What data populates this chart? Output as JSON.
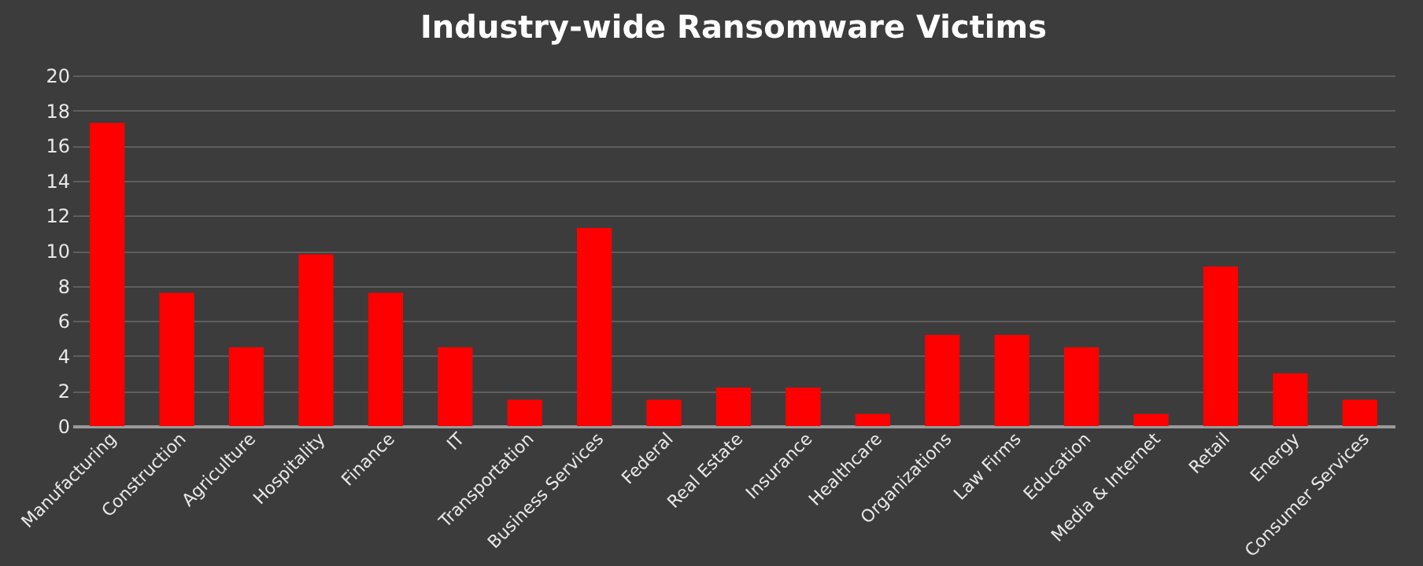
{
  "chart_data": {
    "type": "bar",
    "title": "Industry-wide Ransomware Victims",
    "categories": [
      "Manufacturing",
      "Construction",
      "Agriculture",
      "Hospitality",
      "Finance",
      "IT",
      "Transportation",
      "Business Services",
      "Federal",
      "Real Estate",
      "Insurance",
      "Healthcare",
      "Organizations",
      "Law Firms",
      "Education",
      "Media & Internet",
      "Retail",
      "Energy",
      "Consumer Services"
    ],
    "values": [
      17.3,
      7.6,
      4.5,
      9.8,
      7.6,
      4.5,
      1.5,
      11.3,
      1.5,
      2.2,
      2.2,
      0.7,
      5.2,
      5.2,
      4.5,
      0.7,
      9.1,
      3.0,
      1.5
    ],
    "color": "#ff0000",
    "ylim": [
      0,
      20
    ],
    "yticks": [
      0,
      2,
      4,
      6,
      8,
      10,
      12,
      14,
      16,
      18,
      20
    ],
    "grid": "y"
  }
}
